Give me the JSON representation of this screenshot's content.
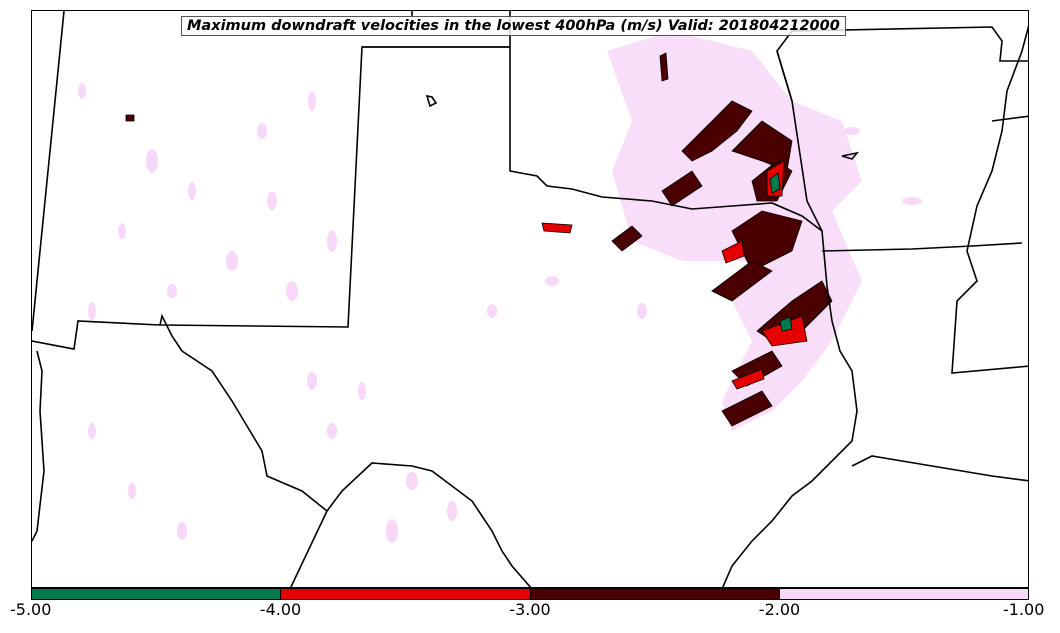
{
  "title": "Maximum downdraft velocities in the lowest 400hPa (m/s) Valid: 201804212000",
  "colorbar": {
    "segments": [
      {
        "from": -5.0,
        "to": -4.0,
        "color": "#007a4d"
      },
      {
        "from": -4.0,
        "to": -3.0,
        "color": "#e60000"
      },
      {
        "from": -3.0,
        "to": -2.0,
        "color": "#4a0000"
      },
      {
        "from": -2.0,
        "to": -1.0,
        "color": "#f8d8f8"
      }
    ],
    "ticks": [
      "-5.00",
      "-4.00",
      "-3.00",
      "-2.00",
      "-1.00"
    ]
  }
}
